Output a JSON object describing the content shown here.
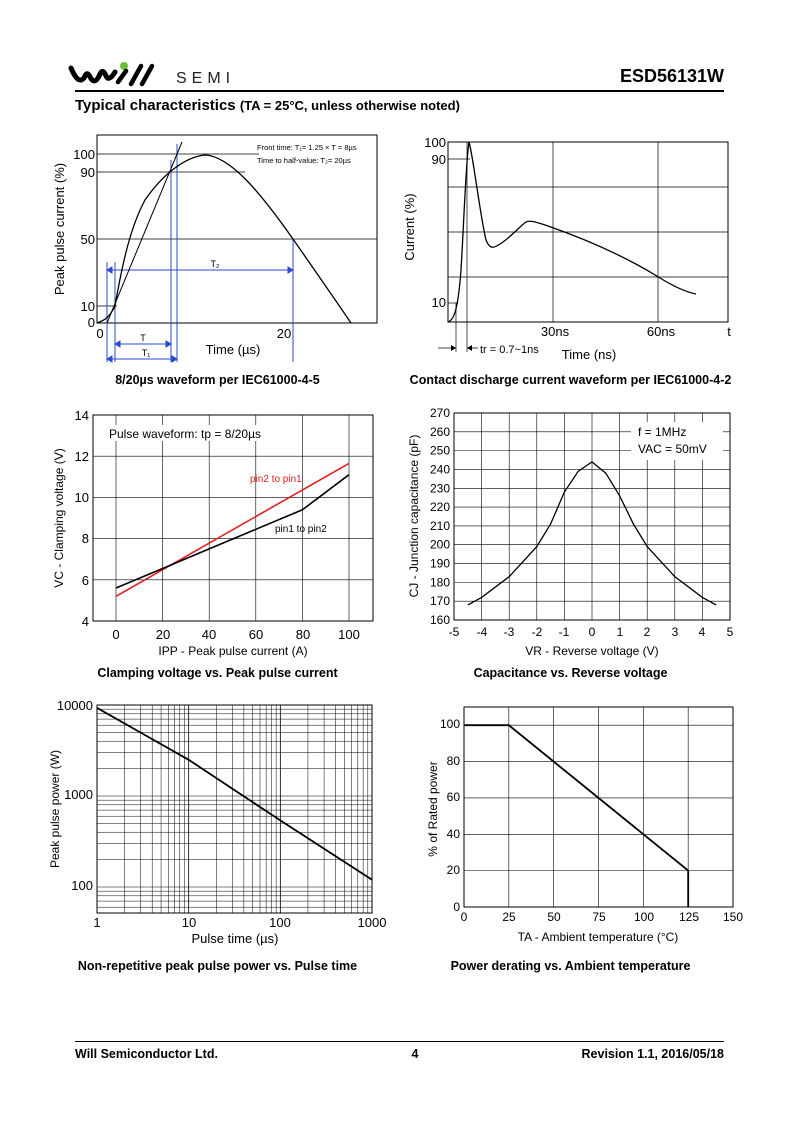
{
  "header": {
    "logo_text": "SEMI",
    "part_number": "ESD56131W",
    "section_title": "Typical characteristics",
    "section_cond": "(TA = 25°C, unless otherwise noted)"
  },
  "charts": {
    "c1": {
      "caption": "8/20µs waveform per IEC61000-4-5",
      "ylabel": "Peak pulse current (%)",
      "xlabel": "Time (µs)",
      "yticks": [
        "100",
        "90",
        "50",
        "10",
        "0"
      ],
      "xticks": [
        "0",
        "20"
      ],
      "note1": "Front time: T₁= 1.25 × T = 8µs",
      "note2": "Time to half-value: T₂= 20µs",
      "lbl_T": "T",
      "lbl_T1": "T₁",
      "lbl_T2": "T₂"
    },
    "c2": {
      "caption": "Contact discharge current waveform per IEC61000-4-2",
      "ylabel": "Current (%)",
      "xlabel": "Time (ns)",
      "yticks": [
        "100",
        "90",
        "10"
      ],
      "xticks": [
        "30ns",
        "60ns",
        "t"
      ],
      "tr_label": "tr = 0.7~1ns"
    },
    "c3": {
      "caption": "Clamping voltage vs. Peak pulse current",
      "ylabel": "VC - Clamping voltage (V)",
      "xlabel": "IPP - Peak pulse current (A)",
      "annotation": "Pulse waveform: tp = 8/20µs",
      "series": [
        {
          "name": "pin2 to pin1",
          "color": "#e02020",
          "x": [
            0,
            100
          ],
          "y": [
            5.2,
            11.65
          ]
        },
        {
          "name": "pin1 to pin2",
          "color": "#000000",
          "x": [
            0,
            20,
            40,
            60,
            80,
            100
          ],
          "y": [
            5.6,
            6.55,
            7.5,
            8.45,
            9.4,
            11.1
          ]
        }
      ],
      "xticks": [
        "0",
        "20",
        "40",
        "60",
        "80",
        "100"
      ],
      "yticks": [
        "14",
        "12",
        "10",
        "8",
        "6",
        "4"
      ]
    },
    "c4": {
      "caption": "Capacitance vs. Reverse voltage",
      "ylabel": "CJ - Junction capacitance (pF)",
      "xlabel": "VR - Reverse voltage (V)",
      "note1": "f = 1MHz",
      "note2": "VAC = 50mV",
      "xticks": [
        "-5",
        "-4",
        "-3",
        "-2",
        "-1",
        "0",
        "1",
        "2",
        "3",
        "4",
        "5"
      ],
      "yticks": [
        "270",
        "260",
        "250",
        "240",
        "230",
        "220",
        "210",
        "200",
        "190",
        "180",
        "170",
        "160"
      ]
    },
    "c5": {
      "caption": "Non-repetitive peak pulse power vs. Pulse time",
      "ylabel": "Peak pulse power (W)",
      "xlabel": "Pulse time (µs)",
      "xticks": [
        "1",
        "10",
        "100",
        "1000"
      ],
      "yticks": [
        "10000",
        "1000",
        "100"
      ]
    },
    "c6": {
      "caption": "Power derating vs. Ambient temperature",
      "ylabel": "% of Rated power",
      "xlabel": "TA - Ambient temperature (°C)",
      "xticks": [
        "0",
        "25",
        "50",
        "75",
        "100",
        "125",
        "150"
      ],
      "yticks": [
        "100",
        "80",
        "60",
        "40",
        "20",
        "0"
      ]
    }
  },
  "chart_data": [
    {
      "type": "line",
      "title": "8/20µs waveform per IEC61000-4-5",
      "xlabel": "Time (µs)",
      "ylabel": "Peak pulse current (%)",
      "x": [
        0,
        2,
        4,
        6,
        8,
        10,
        12,
        14,
        16,
        18,
        20,
        22,
        24
      ],
      "y": [
        0,
        8,
        55,
        78,
        92,
        99,
        100,
        96,
        85,
        70,
        50,
        25,
        0
      ]
    },
    {
      "type": "line",
      "title": "Contact discharge current waveform per IEC61000-4-2",
      "xlabel": "Time (ns)",
      "ylabel": "Current (%)",
      "x": [
        0,
        1,
        3,
        5,
        10,
        20,
        30,
        40,
        50,
        60,
        70
      ],
      "y": [
        0,
        100,
        75,
        48,
        50,
        55,
        50,
        45,
        38,
        28,
        20
      ]
    },
    {
      "type": "line",
      "title": "Clamping voltage vs. Peak pulse current",
      "xlabel": "IPP - Peak pulse current (A)",
      "ylabel": "VC - Clamping voltage (V)",
      "xlim": [
        -10,
        110
      ],
      "ylim": [
        4,
        14
      ],
      "series": [
        {
          "name": "pin2 to pin1",
          "x": [
            0,
            100
          ],
          "y": [
            5.2,
            11.65
          ]
        },
        {
          "name": "pin1 to pin2",
          "x": [
            0,
            20,
            40,
            60,
            80,
            100
          ],
          "y": [
            5.6,
            6.55,
            7.5,
            8.45,
            9.4,
            11.1
          ]
        }
      ]
    },
    {
      "type": "line",
      "title": "Capacitance vs. Reverse voltage",
      "xlabel": "VR - Reverse voltage (V)",
      "ylabel": "CJ - Junction capacitance (pF)",
      "xlim": [
        -5,
        5
      ],
      "ylim": [
        160,
        270
      ],
      "x": [
        -4.5,
        -4,
        -3,
        -2,
        -1.5,
        -1,
        -0.5,
        0,
        0.5,
        1,
        1.5,
        2,
        3,
        4,
        4.5
      ],
      "y": [
        168,
        172,
        183,
        199,
        211,
        228,
        239,
        244,
        238,
        226,
        211,
        199,
        183,
        172,
        168
      ]
    },
    {
      "type": "line",
      "title": "Non-repetitive peak pulse power vs. Pulse time",
      "xlabel": "Pulse time (µs)",
      "ylabel": "Peak pulse power (W)",
      "xscale": "log",
      "yscale": "log",
      "xlim": [
        1,
        1000
      ],
      "ylim": [
        50,
        10000
      ],
      "x": [
        1,
        10,
        100,
        1000
      ],
      "y": [
        9300,
        2500,
        540,
        120
      ]
    },
    {
      "type": "line",
      "title": "Power derating vs. Ambient temperature",
      "xlabel": "TA - Ambient temperature (°C)",
      "ylabel": "% of Rated power",
      "xlim": [
        0,
        150
      ],
      "ylim": [
        0,
        110
      ],
      "x": [
        0,
        25,
        125,
        125
      ],
      "y": [
        100,
        100,
        20,
        0
      ]
    }
  ],
  "footer": {
    "company": "Will Semiconductor Ltd.",
    "page": "4",
    "revision": "Revision 1.1, 2016/05/18"
  }
}
